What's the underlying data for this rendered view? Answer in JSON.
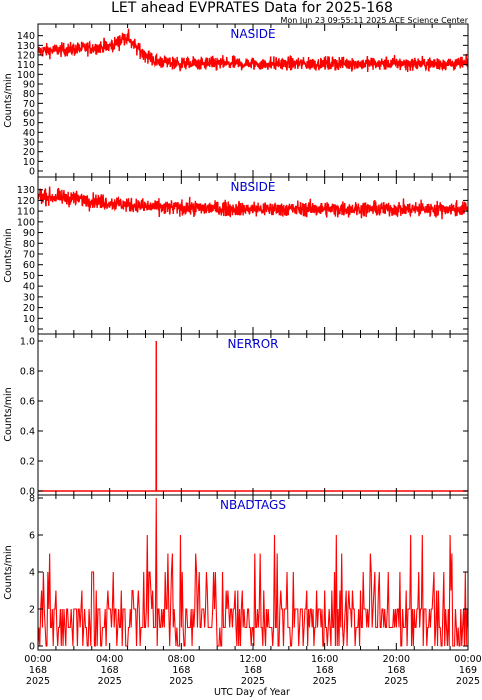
{
  "title": "LET ahead EVPRATES Data for 2025-168",
  "subtitle": "Mon Jun 23 09:55:11 2025 ACE Science Center",
  "xlabel": "UTC Day of Year",
  "colors": {
    "trace": "#ff0000",
    "panel_label": "#0000d0",
    "axes": "#000000"
  },
  "x_ticks": [
    {
      "time": "00:00",
      "doy": "168",
      "year": "2025"
    },
    {
      "time": "04:00",
      "doy": "168",
      "year": "2025"
    },
    {
      "time": "08:00",
      "doy": "168",
      "year": "2025"
    },
    {
      "time": "12:00",
      "doy": "168",
      "year": "2025"
    },
    {
      "time": "16:00",
      "doy": "168",
      "year": "2025"
    },
    {
      "time": "20:00",
      "doy": "168",
      "year": "2025"
    },
    {
      "time": "00:00",
      "doy": "169",
      "year": "2025"
    }
  ],
  "chart_data": [
    {
      "type": "line",
      "label": "NASIDE",
      "ylabel": "Counts/min",
      "ylim": [
        0,
        150
      ],
      "yticks": [
        0,
        10,
        20,
        30,
        40,
        50,
        60,
        70,
        80,
        90,
        100,
        110,
        120,
        130,
        140
      ],
      "x_range_hours": [
        0,
        24
      ],
      "profile": [
        [
          0,
          124
        ],
        [
          2,
          126
        ],
        [
          4,
          129
        ],
        [
          4.9,
          138
        ],
        [
          5.6,
          126
        ],
        [
          6.5,
          114
        ],
        [
          8,
          111
        ],
        [
          12,
          111
        ],
        [
          18,
          111
        ],
        [
          24,
          111
        ]
      ],
      "noise": 5
    },
    {
      "type": "line",
      "label": "NBSIDE",
      "ylabel": "Counts/min",
      "ylim": [
        0,
        140
      ],
      "yticks": [
        0,
        10,
        20,
        30,
        40,
        50,
        60,
        70,
        80,
        90,
        100,
        110,
        120,
        130
      ],
      "x_range_hours": [
        0,
        24
      ],
      "profile": [
        [
          0,
          124
        ],
        [
          2,
          122
        ],
        [
          4,
          118
        ],
        [
          6,
          114
        ],
        [
          8,
          113
        ],
        [
          12,
          112
        ],
        [
          18,
          112
        ],
        [
          24,
          112
        ]
      ],
      "noise": 5
    },
    {
      "type": "line",
      "label": "NERROR",
      "ylabel": "Counts/min",
      "ylim": [
        0,
        1.0
      ],
      "yticks": [
        0.0,
        0.2,
        0.4,
        0.6,
        0.8,
        1.0
      ],
      "yticklabels": [
        "0.0",
        "0.2",
        "0.4",
        "0.6",
        "0.8",
        "1.0"
      ],
      "x_range_hours": [
        0,
        24
      ],
      "baseline": 0,
      "spikes": [
        {
          "x": 6.6,
          "y": 1.0
        }
      ]
    },
    {
      "type": "line",
      "label": "NBADTAGS",
      "ylabel": "Counts/min",
      "ylim": [
        0,
        8
      ],
      "yticks": [
        0,
        2,
        4,
        6,
        8
      ],
      "x_range_hours": [
        0,
        24
      ],
      "values_range": [
        0,
        6
      ],
      "peak": {
        "x": 6.6,
        "y": 8
      }
    }
  ]
}
